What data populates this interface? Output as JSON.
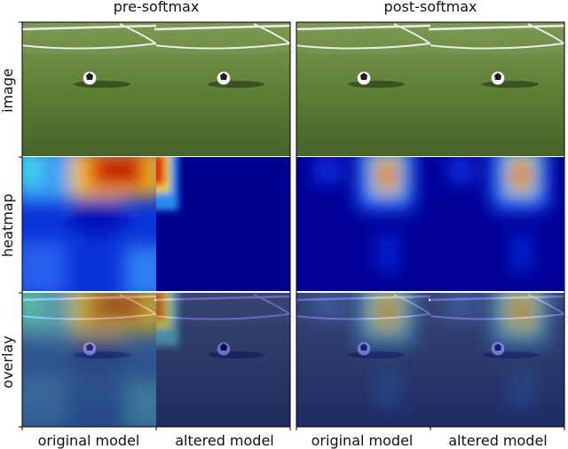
{
  "figure": {
    "group_titles": [
      "pre-softmax",
      "post-softmax"
    ],
    "row_labels": [
      "image",
      "heatmap",
      "overlay"
    ],
    "column_labels": [
      "original model",
      "altered model",
      "original model",
      "altered model"
    ]
  },
  "colors": {
    "grass": "#5d7f34",
    "heat_low": "#0000a8",
    "heat_mid": "#29c7e6",
    "heat_high": "#d01e05",
    "line": "#f2f2f2"
  },
  "icons": [
    "soccer-ball-icon"
  ]
}
